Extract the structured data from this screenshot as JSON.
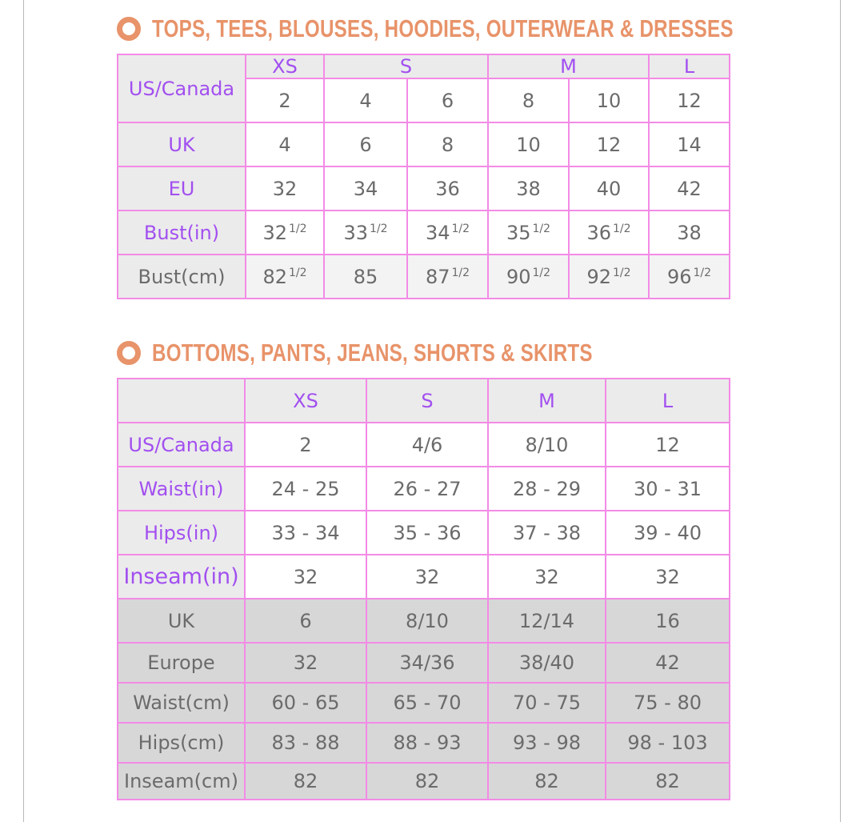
{
  "colors": {
    "heading": "#E8936A",
    "accent_text": "#a24ff0",
    "border": "#F38BE6",
    "label_bg": "#ebebeb",
    "dark_row_bg": "#d7d7d7"
  },
  "tops": {
    "title": "TOPS, TEES, BLOUSES, HOODIES, OUTERWEAR & DRESSES",
    "bullet_icon": "ring-bullet",
    "corner_label": "US/Canada",
    "sizes": [
      {
        "label": "XS",
        "span": 1
      },
      {
        "label": "S",
        "span": 2
      },
      {
        "label": "M",
        "span": 2
      },
      {
        "label": "L",
        "span": 1
      }
    ],
    "us_canada": [
      "2",
      "4",
      "6",
      "8",
      "10",
      "12"
    ],
    "rows": [
      {
        "label": "UK",
        "style": "purple",
        "values": [
          {
            "v": "4"
          },
          {
            "v": "6"
          },
          {
            "v": "8"
          },
          {
            "v": "10"
          },
          {
            "v": "12"
          },
          {
            "v": "14"
          }
        ]
      },
      {
        "label": "EU",
        "style": "purple",
        "values": [
          {
            "v": "32"
          },
          {
            "v": "34"
          },
          {
            "v": "36"
          },
          {
            "v": "38"
          },
          {
            "v": "40"
          },
          {
            "v": "42"
          }
        ]
      },
      {
        "label": "Bust(in)",
        "style": "purple",
        "values": [
          {
            "v": "32",
            "frac": "1/2"
          },
          {
            "v": "33",
            "frac": "1/2"
          },
          {
            "v": "34",
            "frac": "1/2"
          },
          {
            "v": "35",
            "frac": "1/2"
          },
          {
            "v": "36",
            "frac": "1/2"
          },
          {
            "v": "38"
          }
        ]
      },
      {
        "label": "Bust(cm)",
        "style": "light",
        "values": [
          {
            "v": "82",
            "frac": "1/2"
          },
          {
            "v": "85"
          },
          {
            "v": "87",
            "frac": "1/2"
          },
          {
            "v": "90",
            "frac": "1/2"
          },
          {
            "v": "92",
            "frac": "1/2"
          },
          {
            "v": "96",
            "frac": "1/2"
          }
        ]
      }
    ]
  },
  "bottoms": {
    "title": "BOTTOMS, PANTS, JEANS, SHORTS & SKIRTS",
    "bullet_icon": "ring-bullet",
    "sizes": [
      "XS",
      "S",
      "M",
      "L"
    ],
    "rows": [
      {
        "label": "US/Canada",
        "style": "purple",
        "values": [
          "2",
          "4/6",
          "8/10",
          "12"
        ]
      },
      {
        "label": "Waist(in)",
        "style": "purple",
        "values": [
          "24 - 25",
          "26 - 27",
          "28 - 29",
          "30 - 31"
        ]
      },
      {
        "label": "Hips(in)",
        "style": "purple",
        "values": [
          "33 - 34",
          "35 - 36",
          "37 - 38",
          "39 - 40"
        ]
      },
      {
        "label": "Inseam(in)",
        "style": "purple",
        "values": [
          "32",
          "32",
          "32",
          "32"
        ]
      },
      {
        "label": "UK",
        "style": "dark",
        "values": [
          "6",
          "8/10",
          "12/14",
          "16"
        ]
      },
      {
        "label": "Europe",
        "style": "dark",
        "values": [
          "32",
          "34/36",
          "38/40",
          "42"
        ]
      },
      {
        "label": "Waist(cm)",
        "style": "dark",
        "values": [
          "60 - 65",
          "65 - 70",
          "70 - 75",
          "75 - 80"
        ]
      },
      {
        "label": "Hips(cm)",
        "style": "dark",
        "values": [
          "83 - 88",
          "88 - 93",
          "93 - 98",
          "98 - 103"
        ]
      },
      {
        "label": "Inseam(cm)",
        "style": "dark",
        "values": [
          "82",
          "82",
          "82",
          "82"
        ]
      }
    ]
  }
}
